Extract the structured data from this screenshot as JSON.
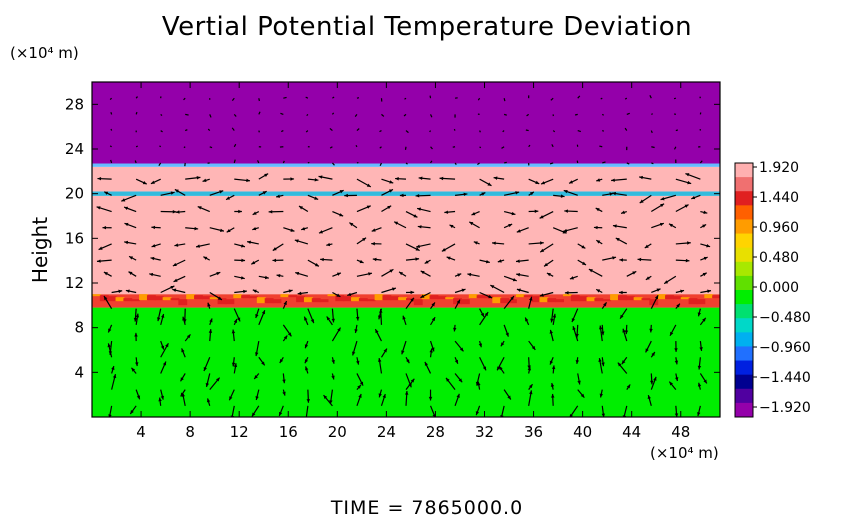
{
  "chart_data": {
    "type": "heatmap",
    "title": "Vertial Potential Temperature Deviation",
    "ylabel": "Height",
    "y_unit": "(×10⁴ m)",
    "x_unit": "(×10⁴ m)",
    "footer": "TIME  =  7865000.0",
    "xlim": [
      0,
      51.2
    ],
    "ylim": [
      0,
      30
    ],
    "x_ticks": [
      4,
      8,
      12,
      16,
      20,
      24,
      28,
      32,
      36,
      40,
      44,
      48
    ],
    "y_ticks": [
      4,
      8,
      12,
      16,
      20,
      24,
      28
    ],
    "layers": [
      {
        "from": 0,
        "to": 9.8,
        "value": 0.0,
        "color": "#00ee00"
      },
      {
        "from": 9.8,
        "to": 11.0,
        "value": 1.9,
        "color": "#f04030"
      },
      {
        "from": 11.0,
        "to": 19.8,
        "value": 1.92,
        "color": "#ffb6b6"
      },
      {
        "from": 19.8,
        "to": 20.2,
        "value": -1.0,
        "color": "#33bbdd"
      },
      {
        "from": 20.2,
        "to": 22.4,
        "value": 1.92,
        "color": "#ffb6b6"
      },
      {
        "from": 22.4,
        "to": 22.7,
        "value": -0.9,
        "color": "#66bbff"
      },
      {
        "from": 22.7,
        "to": 30,
        "value": -1.92,
        "color": "#9400aa"
      }
    ],
    "colorbar": {
      "labels": [
        "1.920",
        "1.440",
        "0.960",
        "0.480",
        "0.000",
        "−0.480",
        "−0.960",
        "−1.440",
        "−1.920"
      ],
      "colors": [
        "#ffb0b0",
        "#f07070",
        "#e02020",
        "#ff6000",
        "#ff9c00",
        "#ffd400",
        "#e8e000",
        "#a8e800",
        "#60e000",
        "#00ee00",
        "#00e070",
        "#00d8c8",
        "#00b0f0",
        "#2070ff",
        "#0020e0",
        "#000090",
        "#5000a0",
        "#9400aa"
      ]
    },
    "vectors": "wind arrows over grid"
  }
}
